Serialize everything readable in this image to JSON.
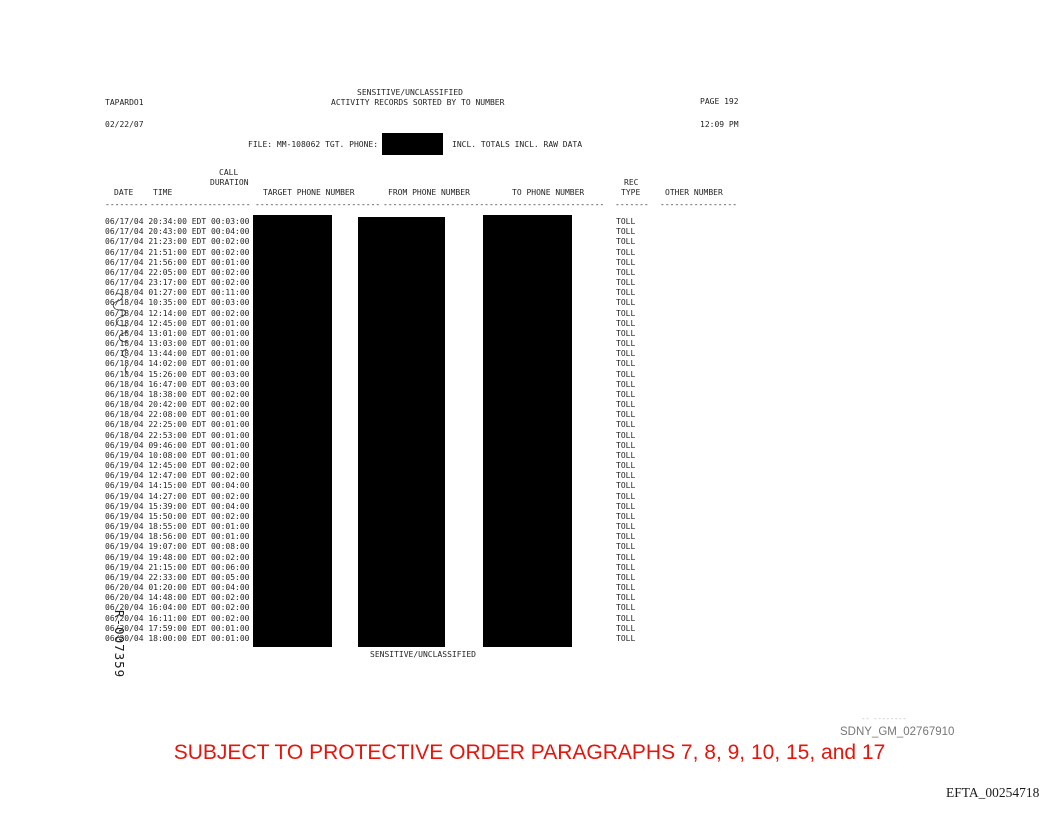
{
  "colors": {
    "protective_order_red": "#e5150c",
    "sdny_gray": "#767676",
    "redaction_black": "#000000",
    "text_black": "#242424"
  },
  "header": {
    "app_id": "TAPARDO1",
    "classification": "SENSITIVE/UNCLASSIFIED",
    "report_title": "ACTIVITY RECORDS SORTED BY TO NUMBER",
    "page_label": "PAGE 192",
    "report_date": "02/22/07",
    "report_time": "12:09 PM",
    "file_line_prefix": "FILE: MM-108062 TGT. PHONE:",
    "file_line_suffix": "INCL. TOTALS INCL. RAW DATA"
  },
  "table": {
    "headers": {
      "call_line1": "CALL",
      "call_line2": "DURATION",
      "date": "DATE",
      "time": "TIME",
      "target": "TARGET PHONE NUMBER",
      "from": "FROM PHONE NUMBER",
      "to": "TO PHONE NUMBER",
      "rec_line1": "REC",
      "rec_line2": "TYPE",
      "other": "OTHER NUMBER"
    },
    "rule_segments": [
      "---------",
      "-------------",
      "--------",
      "--------------------------",
      "--------------------------",
      "--------------------",
      "-------",
      "----------------"
    ],
    "rows": [
      {
        "date": "06/17/04",
        "time": "20:34:00",
        "tz": "EDT",
        "duration": "00:03:00",
        "rec_type": "TOLL"
      },
      {
        "date": "06/17/04",
        "time": "20:43:00",
        "tz": "EDT",
        "duration": "00:04:00",
        "rec_type": "TOLL"
      },
      {
        "date": "06/17/04",
        "time": "21:23:00",
        "tz": "EDT",
        "duration": "00:02:00",
        "rec_type": "TOLL"
      },
      {
        "date": "06/17/04",
        "time": "21:51:00",
        "tz": "EDT",
        "duration": "00:02:00",
        "rec_type": "TOLL"
      },
      {
        "date": "06/17/04",
        "time": "21:56:00",
        "tz": "EDT",
        "duration": "00:01:00",
        "rec_type": "TOLL"
      },
      {
        "date": "06/17/04",
        "time": "22:05:00",
        "tz": "EDT",
        "duration": "00:02:00",
        "rec_type": "TOLL"
      },
      {
        "date": "06/17/04",
        "time": "23:17:00",
        "tz": "EDT",
        "duration": "00:02:00",
        "rec_type": "TOLL"
      },
      {
        "date": "06/18/04",
        "time": "01:27:00",
        "tz": "EDT",
        "duration": "00:11:00",
        "rec_type": "TOLL"
      },
      {
        "date": "06/18/04",
        "time": "10:35:00",
        "tz": "EDT",
        "duration": "00:03:00",
        "rec_type": "TOLL"
      },
      {
        "date": "06/18/04",
        "time": "12:14:00",
        "tz": "EDT",
        "duration": "00:02:00",
        "rec_type": "TOLL"
      },
      {
        "date": "06/18/04",
        "time": "12:45:00",
        "tz": "EDT",
        "duration": "00:01:00",
        "rec_type": "TOLL"
      },
      {
        "date": "06/18/04",
        "time": "13:01:00",
        "tz": "EDT",
        "duration": "00:01:00",
        "rec_type": "TOLL"
      },
      {
        "date": "06/18/04",
        "time": "13:03:00",
        "tz": "EDT",
        "duration": "00:01:00",
        "rec_type": "TOLL"
      },
      {
        "date": "06/18/04",
        "time": "13:44:00",
        "tz": "EDT",
        "duration": "00:01:00",
        "rec_type": "TOLL"
      },
      {
        "date": "06/18/04",
        "time": "14:02:00",
        "tz": "EDT",
        "duration": "00:01:00",
        "rec_type": "TOLL"
      },
      {
        "date": "06/18/04",
        "time": "15:26:00",
        "tz": "EDT",
        "duration": "00:03:00",
        "rec_type": "TOLL"
      },
      {
        "date": "06/18/04",
        "time": "16:47:00",
        "tz": "EDT",
        "duration": "00:03:00",
        "rec_type": "TOLL"
      },
      {
        "date": "06/18/04",
        "time": "18:38:00",
        "tz": "EDT",
        "duration": "00:02:00",
        "rec_type": "TOLL"
      },
      {
        "date": "06/18/04",
        "time": "20:42:00",
        "tz": "EDT",
        "duration": "00:02:00",
        "rec_type": "TOLL"
      },
      {
        "date": "06/18/04",
        "time": "22:08:00",
        "tz": "EDT",
        "duration": "00:01:00",
        "rec_type": "TOLL"
      },
      {
        "date": "06/18/04",
        "time": "22:25:00",
        "tz": "EDT",
        "duration": "00:01:00",
        "rec_type": "TOLL"
      },
      {
        "date": "06/18/04",
        "time": "22:53:00",
        "tz": "EDT",
        "duration": "00:01:00",
        "rec_type": "TOLL"
      },
      {
        "date": "06/19/04",
        "time": "09:46:00",
        "tz": "EDT",
        "duration": "00:01:00",
        "rec_type": "TOLL"
      },
      {
        "date": "06/19/04",
        "time": "10:08:00",
        "tz": "EDT",
        "duration": "00:01:00",
        "rec_type": "TOLL"
      },
      {
        "date": "06/19/04",
        "time": "12:45:00",
        "tz": "EDT",
        "duration": "00:02:00",
        "rec_type": "TOLL"
      },
      {
        "date": "06/19/04",
        "time": "12:47:00",
        "tz": "EDT",
        "duration": "00:02:00",
        "rec_type": "TOLL"
      },
      {
        "date": "06/19/04",
        "time": "14:15:00",
        "tz": "EDT",
        "duration": "00:04:00",
        "rec_type": "TOLL"
      },
      {
        "date": "06/19/04",
        "time": "14:27:00",
        "tz": "EDT",
        "duration": "00:02:00",
        "rec_type": "TOLL"
      },
      {
        "date": "06/19/04",
        "time": "15:39:00",
        "tz": "EDT",
        "duration": "00:04:00",
        "rec_type": "TOLL"
      },
      {
        "date": "06/19/04",
        "time": "15:50:00",
        "tz": "EDT",
        "duration": "00:02:00",
        "rec_type": "TOLL"
      },
      {
        "date": "06/19/04",
        "time": "18:55:00",
        "tz": "EDT",
        "duration": "00:01:00",
        "rec_type": "TOLL"
      },
      {
        "date": "06/19/04",
        "time": "18:56:00",
        "tz": "EDT",
        "duration": "00:01:00",
        "rec_type": "TOLL"
      },
      {
        "date": "06/19/04",
        "time": "19:07:00",
        "tz": "EDT",
        "duration": "00:08:00",
        "rec_type": "TOLL"
      },
      {
        "date": "06/19/04",
        "time": "19:48:00",
        "tz": "EDT",
        "duration": "00:02:00",
        "rec_type": "TOLL"
      },
      {
        "date": "06/19/04",
        "time": "21:15:00",
        "tz": "EDT",
        "duration": "00:06:00",
        "rec_type": "TOLL"
      },
      {
        "date": "06/19/04",
        "time": "22:33:00",
        "tz": "EDT",
        "duration": "00:05:00",
        "rec_type": "TOLL"
      },
      {
        "date": "06/20/04",
        "time": "01:20:00",
        "tz": "EDT",
        "duration": "00:04:00",
        "rec_type": "TOLL"
      },
      {
        "date": "06/20/04",
        "time": "14:48:00",
        "tz": "EDT",
        "duration": "00:02:00",
        "rec_type": "TOLL"
      },
      {
        "date": "06/20/04",
        "time": "16:04:00",
        "tz": "EDT",
        "duration": "00:02:00",
        "rec_type": "TOLL"
      },
      {
        "date": "06/20/04",
        "time": "16:11:00",
        "tz": "EDT",
        "duration": "00:02:00",
        "rec_type": "TOLL"
      },
      {
        "date": "06/20/04",
        "time": "17:59:00",
        "tz": "EDT",
        "duration": "00:01:00",
        "rec_type": "TOLL"
      },
      {
        "date": "06/20/04",
        "time": "18:00:00",
        "tz": "EDT",
        "duration": "00:01:00",
        "rec_type": "TOLL"
      }
    ]
  },
  "footer": {
    "classification": "SENSITIVE/UNCLASSIFIED"
  },
  "stamps": {
    "bates_vertical": "R-007359",
    "artifact_dashes": "-- --------",
    "sdny": "SDNY_GM_02767910",
    "protective_order": "SUBJECT TO PROTECTIVE ORDER PARAGRAPHS 7, 8, 9, 10, 15, and 17",
    "efta": "EFTA_00254718"
  }
}
